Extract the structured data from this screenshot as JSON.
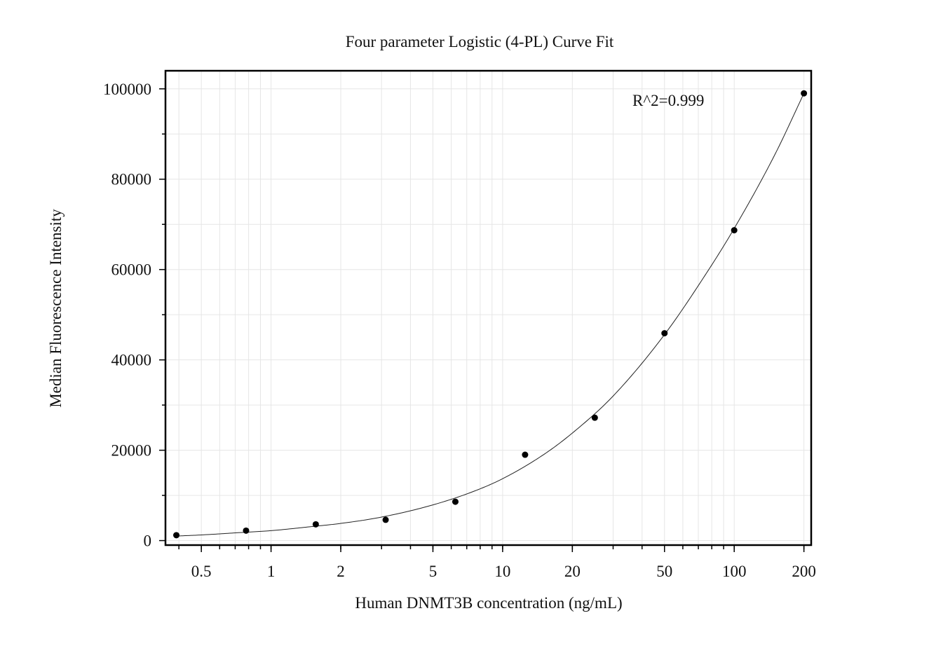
{
  "chart_data": {
    "type": "scatter",
    "title": "Four parameter Logistic (4-PL) Curve Fit",
    "xlabel": "Human DNMT3B concentration (ng/mL)",
    "ylabel": "Median Fluorescence Intensity",
    "x_scale": "log",
    "xlim": [
      0.35,
      215
    ],
    "ylim": [
      -1000,
      104000
    ],
    "grid": true,
    "annotation": "R^2=0.999",
    "x_ticks": [
      0.5,
      1,
      2,
      5,
      10,
      20,
      50,
      100,
      200
    ],
    "x_tick_labels": [
      "0.5",
      "1",
      "2",
      "5",
      "10",
      "20",
      "50",
      "100",
      "200"
    ],
    "y_ticks": [
      0,
      20000,
      40000,
      60000,
      80000,
      100000
    ],
    "y_tick_labels": [
      "0",
      "20000",
      "40000",
      "60000",
      "80000",
      "100000"
    ],
    "points": {
      "x": [
        0.39,
        0.78,
        1.56,
        3.125,
        6.25,
        12.5,
        25,
        50,
        100,
        200
      ],
      "y": [
        1200,
        2200,
        3600,
        4600,
        8600,
        19000,
        27200,
        45900,
        68700,
        99000
      ]
    },
    "fit_curve": {
      "x": [
        0.39,
        0.5,
        0.75,
        1,
        1.5,
        2,
        3,
        5,
        7.5,
        10,
        15,
        20,
        30,
        50,
        75,
        100,
        150,
        200
      ],
      "y": [
        1000,
        1250,
        1800,
        2200,
        3100,
        3800,
        5200,
        7900,
        10900,
        13700,
        19000,
        23800,
        32000,
        45600,
        58800,
        69100,
        85500,
        99000
      ]
    }
  }
}
